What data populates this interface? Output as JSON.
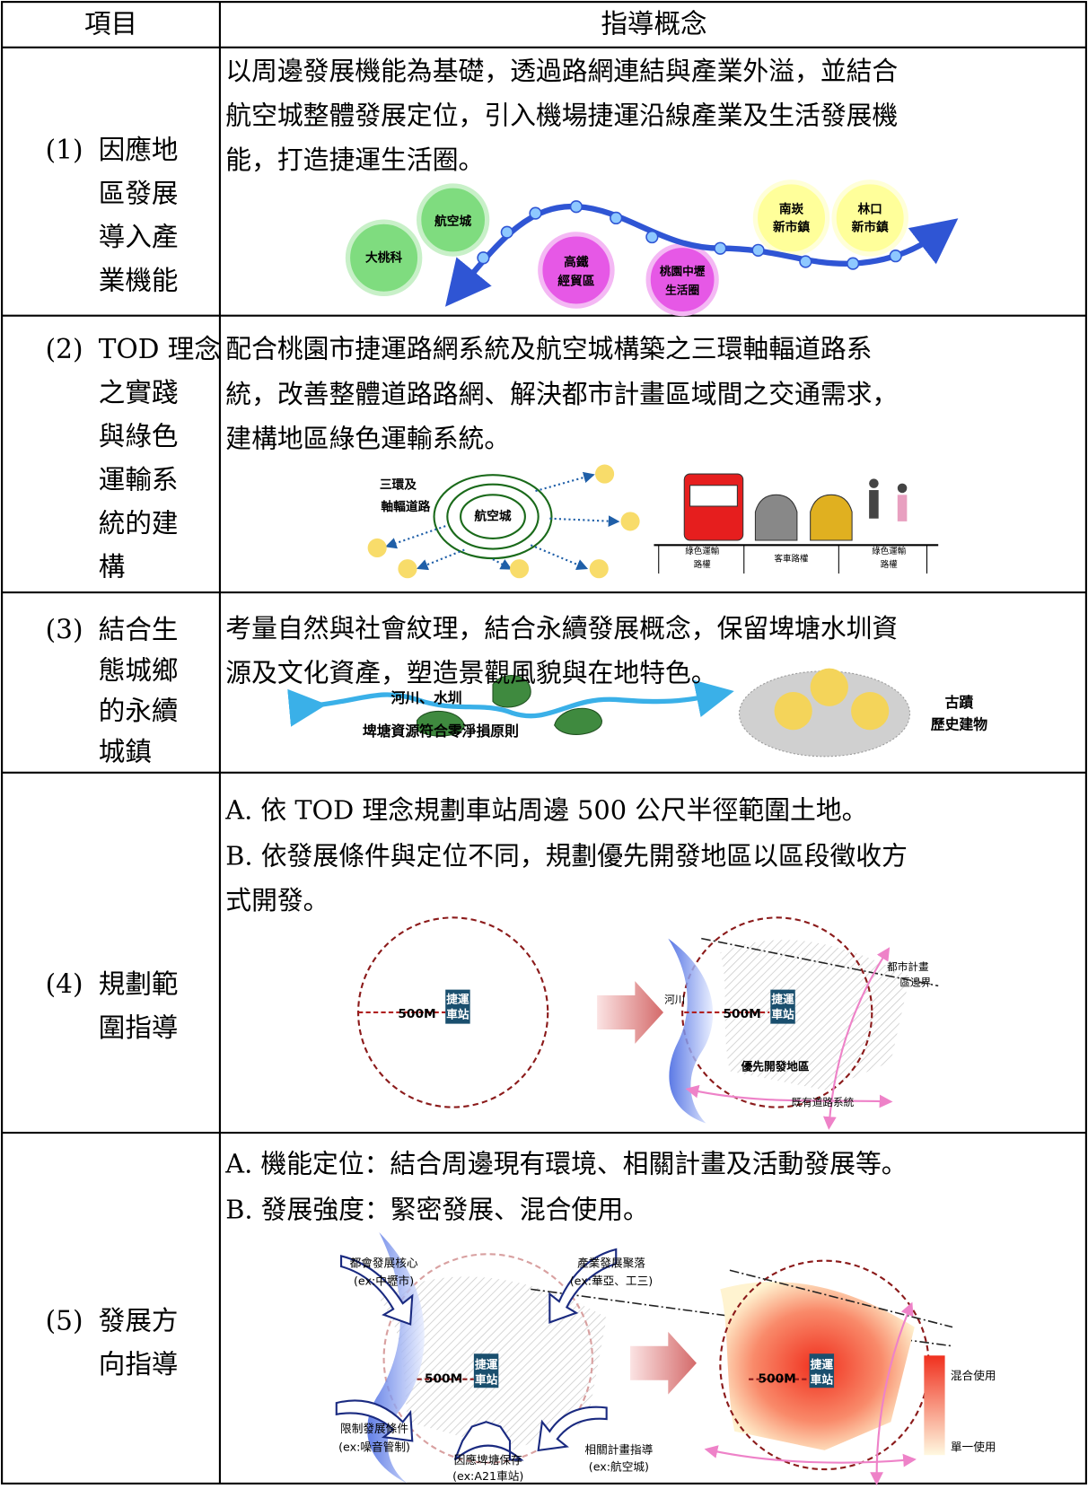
{
  "header": {
    "item": "項目",
    "concept": "指導概念"
  },
  "rows": [
    {
      "number": "(1)",
      "item": [
        "因應地",
        "區發展",
        "導入產",
        "業機能"
      ],
      "concept": [
        "以周邊發展機能為基礎，透過路網連結與產業外溢，並結合",
        "航空城整體發展定位，引入機場捷運沿線產業及生活發展機",
        "能，打造捷運生活圈。"
      ],
      "diagram": {
        "labels": [
          "大桃科",
          "航空城",
          "高鐵",
          "經貿區",
          "桃園中壢",
          "生活圈",
          "南崁",
          "新市鎮",
          "林口",
          "新市鎮"
        ]
      }
    },
    {
      "number": "(2)",
      "item": [
        "TOD 理念",
        "之實踐",
        "與綠色",
        "運輸系",
        "統的建",
        "構"
      ],
      "concept": [
        "配合桃園市捷運路網系統及航空城構築之三環軸輻道路系",
        "統，改善整體道路路網、解決都市計畫區域間之交通需求，",
        "建構地區綠色運輸系統。"
      ],
      "diagram": {
        "labels": [
          "三環及",
          "軸輻道路",
          "航空城",
          "綠色運輸",
          "路權",
          "客車路權",
          "綠色運輸",
          "路權"
        ]
      }
    },
    {
      "number": "(3)",
      "item": [
        "結合生",
        "態城鄉",
        "的永續",
        "城鎮"
      ],
      "concept": [
        "考量自然與社會紋理，結合永續發展概念，保留埤塘水圳資",
        "源及文化資產，塑造景觀風貌與在地特色。"
      ],
      "diagram": {
        "labels": [
          "河川、水圳",
          "埤塘資源符合零淨損原則",
          "古蹟",
          "歷史建物"
        ]
      }
    },
    {
      "number": "(4)",
      "item": [
        "規劃範",
        "圍指導"
      ],
      "concept": [
        "A. 依 TOD 理念規劃車站周邊 500 公尺半徑範圍土地。",
        "B. 依發展條件與定位不同，規劃優先開發地區以區段徵收方",
        "式開發。"
      ],
      "diagram": {
        "labels": [
          "500M",
          "捷運",
          "車站",
          "河川",
          "500M",
          "捷運",
          "車站",
          "都市計畫",
          "區邊界",
          "優先開發地區",
          "既有道路系統"
        ]
      }
    },
    {
      "number": "(5)",
      "item": [
        "發展方",
        "向指導"
      ],
      "concept": [
        "A. 機能定位：結合周邊現有環境、相關計畫及活動發展等。",
        "B. 發展強度：緊密發展、混合使用。"
      ],
      "diagram": {
        "labels": [
          "都會發展核心",
          "(ex:中壢市)",
          "產業發展聚落",
          "(ex:華亞、工三)",
          "限制發展條件",
          "(ex:噪音管制)",
          "相關計畫指導",
          "(ex:航空城)",
          "因應埤塘保存",
          "(ex:A21車站)",
          "500M",
          "捷運",
          "車站",
          "500M",
          "捷運",
          "車站",
          "混合使用",
          "單一使用"
        ]
      }
    }
  ]
}
